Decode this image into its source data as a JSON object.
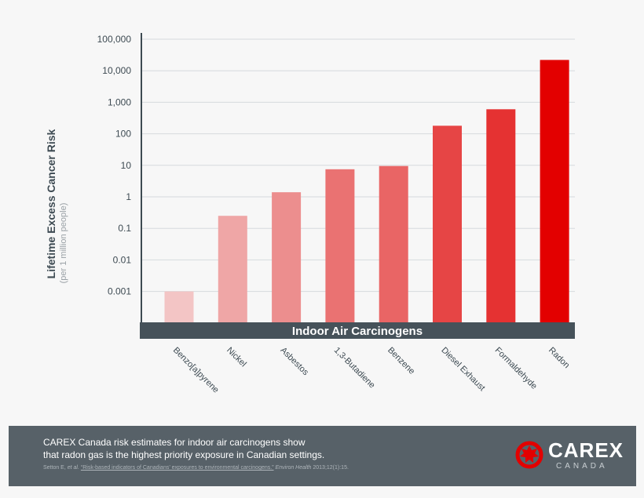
{
  "chart_data": {
    "type": "bar",
    "title": "",
    "band_label": "Indoor Air Carcinogens",
    "ylabel": "Lifetime Excess Cancer Risk",
    "ylabel_sub": "(per 1 million people)",
    "y_scale": "log",
    "ylim": [
      0.0003,
      100000
    ],
    "yticks": [
      {
        "value": 100000,
        "label": "100,000"
      },
      {
        "value": 10000,
        "label": "10,000"
      },
      {
        "value": 1000,
        "label": "1,000"
      },
      {
        "value": 100,
        "label": "100"
      },
      {
        "value": 10,
        "label": "10"
      },
      {
        "value": 1,
        "label": "1"
      },
      {
        "value": 0.1,
        "label": "0.1"
      },
      {
        "value": 0.01,
        "label": "0.01"
      },
      {
        "value": 0.001,
        "label": "0.001"
      }
    ],
    "grid": true,
    "categories": [
      "Benzo[a]pyrene",
      "Nickel",
      "Asbestos",
      "1,3-Butadiene",
      "Benzene",
      "Diesel Exhaust",
      "Formaldehyde",
      "Radon"
    ],
    "values": [
      0.001,
      0.25,
      1.4,
      7.5,
      9.5,
      180,
      600,
      22000
    ],
    "colors": [
      "#f3c5c5",
      "#efa6a6",
      "#ec8e8e",
      "#ea7272",
      "#e96565",
      "#e64545",
      "#e53232",
      "#e30000"
    ]
  },
  "footer": {
    "line1": "CAREX Canada risk estimates for indoor air carcinogens show",
    "line2": "that radon gas is the highest priority exposure in Canadian settings.",
    "citation_authors": "Setton E, ",
    "citation_etal": "et al.",
    "citation_title": "“Risk-based indicators of Canadians’ exposures to environmental carcinogens.”",
    "citation_journal": "Environ Health",
    "citation_ref": "2013;12(1):15."
  },
  "logo": {
    "name": "CAREX",
    "sub": "CANADA",
    "color": "#e30000"
  }
}
